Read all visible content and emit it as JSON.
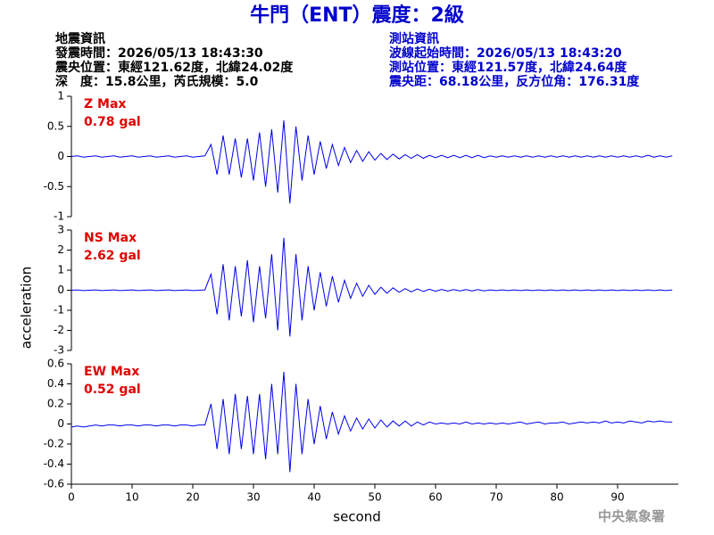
{
  "chart_data": {
    "type": "line",
    "title": "牛門（ENT）震度：2級",
    "info_left": [
      "地震資訊",
      "發震時間：2026/05/13 18:43:30",
      "震央位置：東經121.62度，北緯24.02度",
      "深　度：15.8公里，芮氏規模：5.0"
    ],
    "info_right": [
      "測站資訊",
      "波線起始時間：2026/05/13 18:43:20",
      "測站位置：東經121.57度，北緯24.64度",
      "震央距：68.18公里，反方位角：176.31度"
    ],
    "xlabel": "second",
    "ylabel": "acceleration",
    "credit": "中央氣象署",
    "xlim": [
      0,
      100
    ],
    "xticks": [
      0,
      10,
      20,
      30,
      40,
      50,
      60,
      70,
      80,
      90
    ],
    "x": [
      0,
      1,
      2,
      3,
      4,
      5,
      6,
      7,
      8,
      9,
      10,
      11,
      12,
      13,
      14,
      15,
      16,
      17,
      18,
      19,
      20,
      21,
      22,
      23,
      24,
      25,
      26,
      27,
      28,
      29,
      30,
      31,
      32,
      33,
      34,
      35,
      36,
      37,
      38,
      39,
      40,
      41,
      42,
      43,
      44,
      45,
      46,
      47,
      48,
      49,
      50,
      51,
      52,
      53,
      54,
      55,
      56,
      57,
      58,
      59,
      60,
      61,
      62,
      63,
      64,
      65,
      66,
      67,
      68,
      69,
      70,
      71,
      72,
      73,
      74,
      75,
      76,
      77,
      78,
      79,
      80,
      81,
      82,
      83,
      84,
      85,
      86,
      87,
      88,
      89,
      90,
      91,
      92,
      93,
      94,
      95,
      96,
      97,
      98,
      99
    ],
    "series": [
      {
        "name": "Z Max",
        "max_label": "0.78 gal",
        "color": "#0000ee",
        "ylim": [
          -1,
          1
        ],
        "yticks": [
          -1,
          -0.5,
          0,
          0.5,
          1
        ],
        "values": [
          0,
          0.01,
          -0.01,
          0,
          0.01,
          -0.01,
          0,
          0.01,
          -0.01,
          0,
          0.01,
          -0.01,
          0,
          0.01,
          -0.01,
          0,
          0.01,
          -0.01,
          0,
          0.01,
          -0.01,
          0,
          0.01,
          0.2,
          -0.3,
          0.35,
          -0.3,
          0.3,
          -0.35,
          0.3,
          -0.4,
          0.4,
          -0.5,
          0.45,
          -0.6,
          0.6,
          -0.78,
          0.5,
          -0.4,
          0.35,
          -0.3,
          0.25,
          -0.2,
          0.2,
          -0.15,
          0.15,
          -0.1,
          0.1,
          -0.08,
          0.08,
          -0.06,
          0.05,
          -0.05,
          0.04,
          -0.04,
          0.03,
          -0.03,
          0.03,
          -0.03,
          0.02,
          -0.02,
          0.02,
          -0.02,
          0.02,
          -0.02,
          0.02,
          -0.02,
          0.02,
          -0.02,
          0.01,
          -0.01,
          0.01,
          -0.01,
          0.01,
          -0.01,
          0.01,
          -0.01,
          0.01,
          -0.01,
          0.01,
          -0.01,
          0.01,
          -0.01,
          0.01,
          -0.01,
          0.01,
          -0.01,
          0.01,
          -0.01,
          0.01,
          -0.01,
          0.01,
          -0.01,
          0.01,
          -0.01,
          0.02,
          -0.01,
          0.01,
          -0.01,
          0.01
        ]
      },
      {
        "name": "NS Max",
        "max_label": "2.62 gal",
        "color": "#0000ee",
        "ylim": [
          -3,
          3
        ],
        "yticks": [
          -3,
          -2,
          -1,
          0,
          1,
          2,
          3
        ],
        "values": [
          0,
          0.02,
          -0.02,
          0,
          0.02,
          -0.02,
          0,
          0.02,
          -0.02,
          0,
          0.02,
          -0.02,
          0,
          0.02,
          -0.02,
          0,
          0.02,
          -0.02,
          0,
          0.02,
          -0.02,
          0,
          0.02,
          0.8,
          -1.2,
          1.3,
          -1.5,
          1.2,
          -1.3,
          1.5,
          -1.6,
          1.2,
          -1.4,
          1.8,
          -2.0,
          2.62,
          -2.3,
          1.8,
          -1.5,
          1.2,
          -1.0,
          0.9,
          -0.8,
          0.7,
          -0.6,
          0.5,
          -0.4,
          0.35,
          -0.3,
          0.25,
          -0.2,
          0.15,
          -0.15,
          0.12,
          -0.1,
          0.08,
          -0.08,
          0.06,
          -0.06,
          0.05,
          -0.05,
          0.04,
          -0.04,
          0.03,
          -0.03,
          0.03,
          -0.03,
          0.03,
          -0.03,
          0.02,
          -0.02,
          0.02,
          -0.02,
          0.02,
          -0.02,
          0.02,
          -0.02,
          0.02,
          -0.02,
          0.02,
          -0.02,
          0.02,
          -0.02,
          0.02,
          -0.02,
          0.02,
          -0.02,
          0.02,
          -0.02,
          0.02,
          -0.02,
          0.02,
          -0.02,
          0.02,
          -0.02,
          0.02,
          -0.02,
          0.02,
          -0.02,
          0.02
        ]
      },
      {
        "name": "EW Max",
        "max_label": "0.52 gal",
        "color": "#0000ee",
        "ylim": [
          -0.6,
          0.6
        ],
        "yticks": [
          -0.6,
          -0.4,
          -0.2,
          0,
          0.2,
          0.4,
          0.6
        ],
        "values": [
          -0.03,
          -0.02,
          -0.03,
          -0.02,
          -0.01,
          -0.02,
          -0.01,
          -0.01,
          -0.02,
          -0.01,
          -0.01,
          -0.02,
          -0.01,
          -0.01,
          -0.02,
          -0.01,
          -0.01,
          -0.02,
          -0.01,
          -0.01,
          -0.02,
          -0.01,
          -0.01,
          0.2,
          -0.25,
          0.25,
          -0.3,
          0.3,
          -0.25,
          0.28,
          -0.3,
          0.3,
          -0.35,
          0.4,
          -0.3,
          0.52,
          -0.48,
          0.4,
          -0.3,
          0.25,
          -0.2,
          0.18,
          -0.15,
          0.12,
          -0.1,
          0.08,
          -0.07,
          0.06,
          -0.05,
          0.05,
          -0.04,
          0.04,
          -0.03,
          0.03,
          -0.02,
          0.03,
          -0.02,
          0.02,
          -0.01,
          0.02,
          0,
          0.01,
          0,
          0.01,
          0,
          0.02,
          0,
          0.01,
          0,
          0.01,
          0,
          0.01,
          0,
          0.01,
          0.02,
          0,
          0.01,
          0.02,
          0,
          0.01,
          0.01,
          0.02,
          0,
          0.01,
          0.02,
          0.01,
          0.02,
          0.01,
          0.03,
          0.01,
          0.02,
          0.01,
          0.03,
          0.02,
          0.01,
          0.03,
          0.02,
          0.03,
          0.02,
          0.02
        ]
      }
    ]
  }
}
